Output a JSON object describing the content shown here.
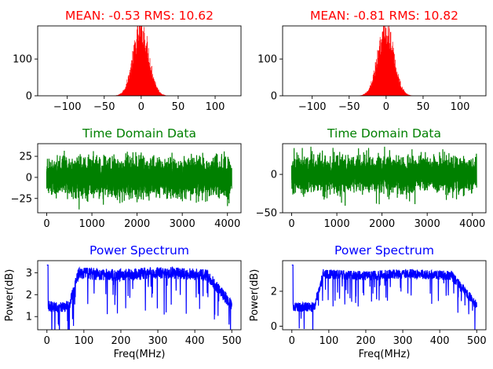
{
  "chart_data": [
    {
      "type": "histogram",
      "title": "MEAN: -0.53 RMS: 10.62",
      "title_color": "#ff0000",
      "series_color": "#ff0000",
      "mean": -0.53,
      "rms": 10.62,
      "peak": 180,
      "xlim": [
        -140,
        135
      ],
      "ylim": [
        0,
        190
      ],
      "xticks": [
        -100,
        -50,
        0,
        50,
        100
      ],
      "yticks": [
        0,
        100
      ],
      "xlabel": "",
      "ylabel": ""
    },
    {
      "type": "histogram",
      "title": "MEAN: -0.81 RMS: 10.82",
      "title_color": "#ff0000",
      "series_color": "#ff0000",
      "mean": -0.81,
      "rms": 10.82,
      "peak": 178,
      "xlim": [
        -140,
        135
      ],
      "ylim": [
        0,
        190
      ],
      "xticks": [
        -100,
        -50,
        0,
        50,
        100
      ],
      "yticks": [
        0,
        100
      ],
      "xlabel": "",
      "ylabel": ""
    },
    {
      "type": "line",
      "title": "Time Domain Data",
      "title_color": "#008000",
      "series_color": "#008000",
      "n_samples": 4096,
      "rms": 10.62,
      "extremes": [
        35,
        -38
      ],
      "xlim": [
        -200,
        4300
      ],
      "ylim": [
        -42,
        40
      ],
      "xticks": [
        0,
        1000,
        2000,
        3000,
        4000
      ],
      "yticks": [
        -25,
        0,
        25
      ],
      "xlabel": "",
      "ylabel": ""
    },
    {
      "type": "line",
      "title": "Time Domain Data",
      "title_color": "#008000",
      "series_color": "#008000",
      "n_samples": 4096,
      "rms": 10.82,
      "extremes": [
        36,
        -45
      ],
      "xlim": [
        -200,
        4300
      ],
      "ylim": [
        -50,
        40
      ],
      "xticks": [
        0,
        1000,
        2000,
        3000,
        4000
      ],
      "yticks": [
        -50,
        0
      ],
      "xlabel": "",
      "ylabel": ""
    },
    {
      "type": "line",
      "title": "Power Spectrum",
      "title_color": "#0000ff",
      "series_color": "#0000ff",
      "xlim": [
        -25,
        525
      ],
      "ylim": [
        0.4,
        3.55
      ],
      "xticks": [
        0,
        100,
        200,
        300,
        400,
        500
      ],
      "yticks": [
        1,
        2,
        3
      ],
      "xlabel": "Freq(MHz)",
      "ylabel": "Power(dB)",
      "spectrum_shape": {
        "dc_spike": 3.35,
        "low_band": 1.5,
        "passband": 3.0,
        "band_edges": [
          80,
          430
        ],
        "end": 500
      }
    },
    {
      "type": "line",
      "title": "Power Spectrum",
      "title_color": "#0000ff",
      "series_color": "#0000ff",
      "xlim": [
        -25,
        525
      ],
      "ylim": [
        -0.2,
        3.75
      ],
      "xticks": [
        0,
        100,
        200,
        300,
        400,
        500
      ],
      "yticks": [
        0,
        2
      ],
      "xlabel": "Freq(MHz)",
      "ylabel": "Power(dB)",
      "spectrum_shape": {
        "dc_spike": 3.5,
        "low_band": 1.15,
        "passband": 3.0,
        "band_edges": [
          80,
          430
        ],
        "end": 500
      }
    }
  ]
}
